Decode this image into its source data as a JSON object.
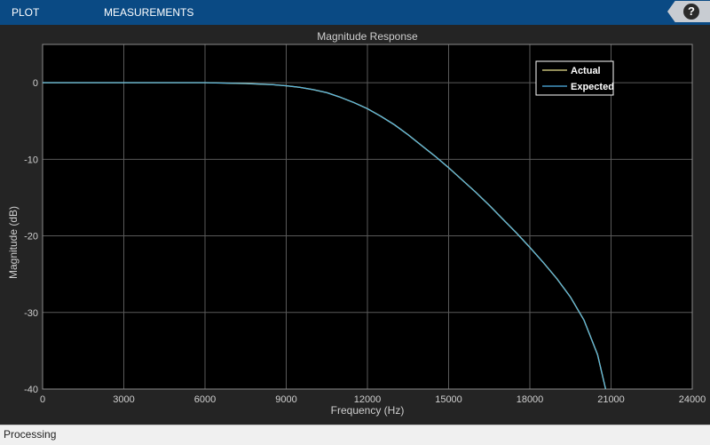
{
  "toolstrip": {
    "tabs": [
      {
        "label": "PLOT"
      },
      {
        "label": "MEASUREMENTS"
      }
    ],
    "help_label": "?"
  },
  "status": {
    "text": "Processing"
  },
  "colors": {
    "toolstrip": "#0a4a84",
    "plot_background": "#000000",
    "axes_text": "#cfcfcf",
    "grid": "#5a5a5a",
    "actual": "#e8e08c",
    "expected": "#4fb3e8"
  },
  "chart_data": {
    "type": "line",
    "title": "Magnitude Response",
    "xlabel": "Frequency (Hz)",
    "ylabel": "Magnitude (dB)",
    "xlim": [
      0,
      24000
    ],
    "ylim": [
      -40,
      5
    ],
    "xticks": [
      0,
      3000,
      6000,
      9000,
      12000,
      15000,
      18000,
      21000,
      24000
    ],
    "yticks": [
      0,
      -10,
      -20,
      -30,
      -40
    ],
    "grid": true,
    "legend_position": "top-right",
    "series": [
      {
        "name": "Actual",
        "color": "#e8e08c",
        "x": [
          0,
          3000,
          6000,
          7500,
          8500,
          9000,
          9500,
          10000,
          10500,
          11000,
          11500,
          12000,
          12500,
          13000,
          13500,
          14000,
          14500,
          15000,
          15500,
          16000,
          16500,
          17000,
          17500,
          18000,
          18500,
          19000,
          19500,
          20000,
          20500,
          20800
        ],
        "y": [
          0,
          0,
          0,
          -0.1,
          -0.25,
          -0.4,
          -0.6,
          -0.9,
          -1.3,
          -1.9,
          -2.6,
          -3.4,
          -4.4,
          -5.5,
          -6.8,
          -8.2,
          -9.6,
          -11.1,
          -12.7,
          -14.3,
          -16.0,
          -17.8,
          -19.6,
          -21.5,
          -23.5,
          -25.6,
          -28.0,
          -31.0,
          -35.5,
          -40.0
        ]
      },
      {
        "name": "Expected",
        "color": "#4fb3e8",
        "x": [
          0,
          3000,
          6000,
          7500,
          8500,
          9000,
          9500,
          10000,
          10500,
          11000,
          11500,
          12000,
          12500,
          13000,
          13500,
          14000,
          14500,
          15000,
          15500,
          16000,
          16500,
          17000,
          17500,
          18000,
          18500,
          19000,
          19500,
          20000,
          20500,
          20800
        ],
        "y": [
          0,
          0,
          0,
          -0.1,
          -0.25,
          -0.4,
          -0.6,
          -0.9,
          -1.3,
          -1.9,
          -2.6,
          -3.4,
          -4.4,
          -5.5,
          -6.8,
          -8.2,
          -9.6,
          -11.1,
          -12.7,
          -14.3,
          -16.0,
          -17.8,
          -19.6,
          -21.5,
          -23.5,
          -25.6,
          -28.0,
          -31.0,
          -35.5,
          -40.0
        ]
      }
    ]
  }
}
